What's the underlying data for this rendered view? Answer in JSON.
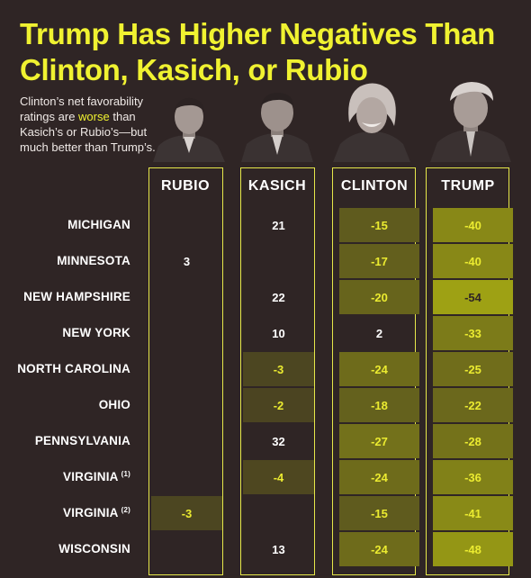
{
  "title": "Trump Has Higher Negatives Than Clinton, Kasich, or Rubio",
  "subtitle": {
    "before": "Clinton’s net favorability ratings are ",
    "highlight": "worse",
    "after": " than Kasich’s or Rubio’s—but much better than Trump’s."
  },
  "colors": {
    "background": "#2f2525",
    "accent": "#f0f231",
    "frame": "#e6e84a"
  },
  "chart_data": {
    "type": "table",
    "title": "Trump Has Higher Negatives Than Clinton, Kasich, or Rubio",
    "columns": [
      "RUBIO",
      "KASICH",
      "CLINTON",
      "TRUMP"
    ],
    "rows": [
      {
        "label": "MICHIGAN",
        "sup": "",
        "values": [
          null,
          21,
          -15,
          -40
        ]
      },
      {
        "label": "MINNESOTA",
        "sup": "",
        "values": [
          3,
          null,
          -17,
          -40
        ]
      },
      {
        "label": "NEW HAMPSHIRE",
        "sup": "",
        "values": [
          null,
          22,
          -20,
          -54
        ]
      },
      {
        "label": "NEW YORK",
        "sup": "",
        "values": [
          null,
          10,
          2,
          -33
        ]
      },
      {
        "label": "NORTH CAROLINA",
        "sup": "",
        "values": [
          null,
          -3,
          -24,
          -25
        ]
      },
      {
        "label": "OHIO",
        "sup": "",
        "values": [
          null,
          -2,
          -18,
          -22
        ]
      },
      {
        "label": "PENNSYLVANIA",
        "sup": "",
        "values": [
          null,
          32,
          -27,
          -28
        ]
      },
      {
        "label": "VIRGINIA",
        "sup": "(1)",
        "values": [
          null,
          -4,
          -24,
          -36
        ]
      },
      {
        "label": "VIRGINIA",
        "sup": "(2)",
        "values": [
          -3,
          null,
          -15,
          -41
        ]
      },
      {
        "label": "WISCONSIN",
        "sup": "",
        "values": [
          null,
          13,
          -24,
          -48
        ]
      }
    ]
  }
}
